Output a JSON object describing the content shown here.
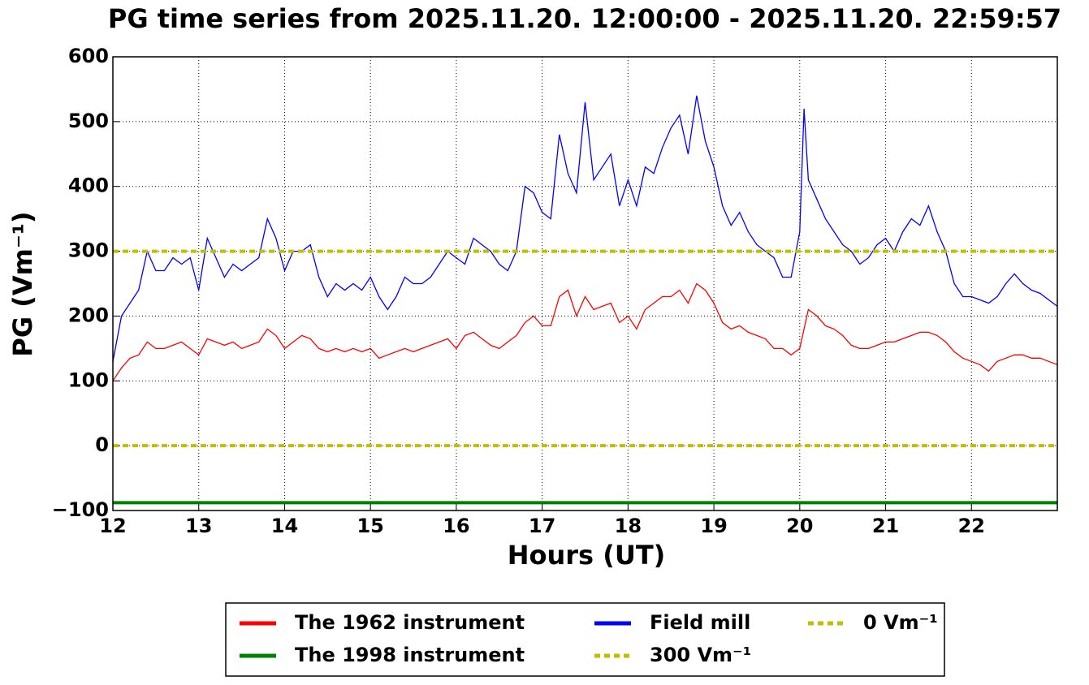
{
  "chart_data": {
    "type": "line",
    "title": "PG time series from 2025.11.20. 12:00:00 - 2025.11.20. 22:59:57",
    "xlabel": "Hours (UT)",
    "ylabel": "PG (Vm⁻¹)",
    "xlim": [
      12,
      23
    ],
    "ylim": [
      -100,
      600
    ],
    "xticks": [
      12,
      13,
      14,
      15,
      16,
      17,
      18,
      19,
      20,
      21,
      22
    ],
    "yticks": [
      {
        "value": -100,
        "label": "−100"
      },
      0,
      100,
      200,
      300,
      400,
      500,
      600
    ],
    "grid": true,
    "legend": "lower center",
    "series": [
      {
        "name": "The 1962 instrument",
        "color": "#ff0000",
        "style": "solid",
        "x": [
          12.0,
          12.1,
          12.2,
          12.3,
          12.4,
          12.5,
          12.6,
          12.7,
          12.8,
          12.9,
          13.0,
          13.1,
          13.2,
          13.3,
          13.4,
          13.5,
          13.6,
          13.7,
          13.8,
          13.9,
          14.0,
          14.1,
          14.2,
          14.3,
          14.4,
          14.5,
          14.6,
          14.7,
          14.8,
          14.9,
          15.0,
          15.1,
          15.2,
          15.3,
          15.4,
          15.5,
          15.6,
          15.7,
          15.8,
          15.9,
          16.0,
          16.1,
          16.2,
          16.3,
          16.4,
          16.5,
          16.6,
          16.7,
          16.8,
          16.9,
          17.0,
          17.1,
          17.2,
          17.3,
          17.4,
          17.5,
          17.6,
          17.7,
          17.8,
          17.9,
          18.0,
          18.1,
          18.2,
          18.3,
          18.4,
          18.5,
          18.6,
          18.7,
          18.8,
          18.9,
          19.0,
          19.1,
          19.2,
          19.3,
          19.4,
          19.5,
          19.6,
          19.7,
          19.8,
          19.9,
          20.0,
          20.1,
          20.2,
          20.3,
          20.4,
          20.5,
          20.6,
          20.7,
          20.8,
          20.9,
          21.0,
          21.1,
          21.2,
          21.3,
          21.4,
          21.5,
          21.6,
          21.7,
          21.8,
          21.9,
          22.0,
          22.1,
          22.2,
          22.3,
          22.4,
          22.5,
          22.6,
          22.7,
          22.8,
          22.9,
          23.0
        ],
        "values": [
          100,
          120,
          135,
          140,
          160,
          150,
          150,
          155,
          160,
          150,
          140,
          165,
          160,
          155,
          160,
          150,
          155,
          160,
          180,
          170,
          150,
          160,
          170,
          165,
          150,
          145,
          150,
          145,
          150,
          145,
          150,
          135,
          140,
          145,
          150,
          145,
          150,
          155,
          160,
          165,
          150,
          170,
          175,
          165,
          155,
          150,
          160,
          170,
          190,
          200,
          185,
          185,
          230,
          240,
          200,
          230,
          210,
          215,
          220,
          190,
          200,
          180,
          210,
          220,
          230,
          230,
          240,
          220,
          250,
          240,
          220,
          190,
          180,
          185,
          175,
          170,
          165,
          150,
          150,
          140,
          150,
          210,
          200,
          185,
          180,
          170,
          155,
          150,
          150,
          155,
          160,
          160,
          165,
          170,
          175,
          175,
          170,
          160,
          145,
          135,
          130,
          125,
          115,
          130,
          135,
          140,
          140,
          135,
          135,
          130,
          125
        ]
      },
      {
        "name": "The 1998 instrument",
        "color": "#008000",
        "style": "solid",
        "x": [
          12,
          23
        ],
        "values": [
          -88,
          -88
        ]
      },
      {
        "name": "Field mill",
        "color": "#0000ff",
        "style": "solid",
        "x": [
          12.0,
          12.1,
          12.2,
          12.3,
          12.4,
          12.5,
          12.6,
          12.7,
          12.8,
          12.9,
          13.0,
          13.1,
          13.2,
          13.3,
          13.4,
          13.5,
          13.6,
          13.7,
          13.8,
          13.9,
          14.0,
          14.1,
          14.2,
          14.3,
          14.4,
          14.5,
          14.6,
          14.7,
          14.8,
          14.9,
          15.0,
          15.1,
          15.2,
          15.3,
          15.4,
          15.5,
          15.6,
          15.7,
          15.8,
          15.9,
          16.0,
          16.1,
          16.2,
          16.3,
          16.4,
          16.5,
          16.6,
          16.7,
          16.8,
          16.9,
          17.0,
          17.1,
          17.2,
          17.3,
          17.4,
          17.5,
          17.6,
          17.7,
          17.8,
          17.9,
          18.0,
          18.1,
          18.2,
          18.3,
          18.4,
          18.5,
          18.6,
          18.7,
          18.8,
          18.9,
          19.0,
          19.1,
          19.2,
          19.3,
          19.4,
          19.5,
          19.6,
          19.7,
          19.8,
          19.9,
          20.0,
          20.05,
          20.1,
          20.2,
          20.3,
          20.4,
          20.5,
          20.6,
          20.7,
          20.8,
          20.9,
          21.0,
          21.1,
          21.2,
          21.3,
          21.4,
          21.5,
          21.6,
          21.7,
          21.8,
          21.9,
          22.0,
          22.1,
          22.2,
          22.3,
          22.4,
          22.5,
          22.6,
          22.7,
          22.8,
          22.9,
          23.0
        ],
        "values": [
          130,
          200,
          220,
          240,
          300,
          270,
          270,
          290,
          280,
          290,
          240,
          320,
          290,
          260,
          280,
          270,
          280,
          290,
          350,
          320,
          270,
          300,
          300,
          310,
          260,
          230,
          250,
          240,
          250,
          240,
          260,
          230,
          210,
          230,
          260,
          250,
          250,
          260,
          280,
          300,
          290,
          280,
          320,
          310,
          300,
          280,
          270,
          300,
          400,
          390,
          360,
          350,
          480,
          420,
          390,
          530,
          410,
          430,
          450,
          370,
          410,
          370,
          430,
          420,
          460,
          490,
          510,
          450,
          540,
          470,
          430,
          370,
          340,
          360,
          330,
          310,
          300,
          290,
          260,
          260,
          330,
          520,
          410,
          380,
          350,
          330,
          310,
          300,
          280,
          290,
          310,
          320,
          300,
          330,
          350,
          340,
          370,
          330,
          300,
          250,
          230,
          230,
          225,
          220,
          230,
          250,
          265,
          250,
          240,
          235,
          225,
          215
        ]
      },
      {
        "name": "300 Vm⁻¹",
        "color": "#bfbf00",
        "style": "dashed",
        "x": [
          12,
          23
        ],
        "values": [
          300,
          300
        ]
      },
      {
        "name": "0 Vm⁻¹",
        "color": "#bfbf00",
        "style": "dashed",
        "x": [
          12,
          23
        ],
        "values": [
          0,
          0
        ]
      }
    ]
  }
}
